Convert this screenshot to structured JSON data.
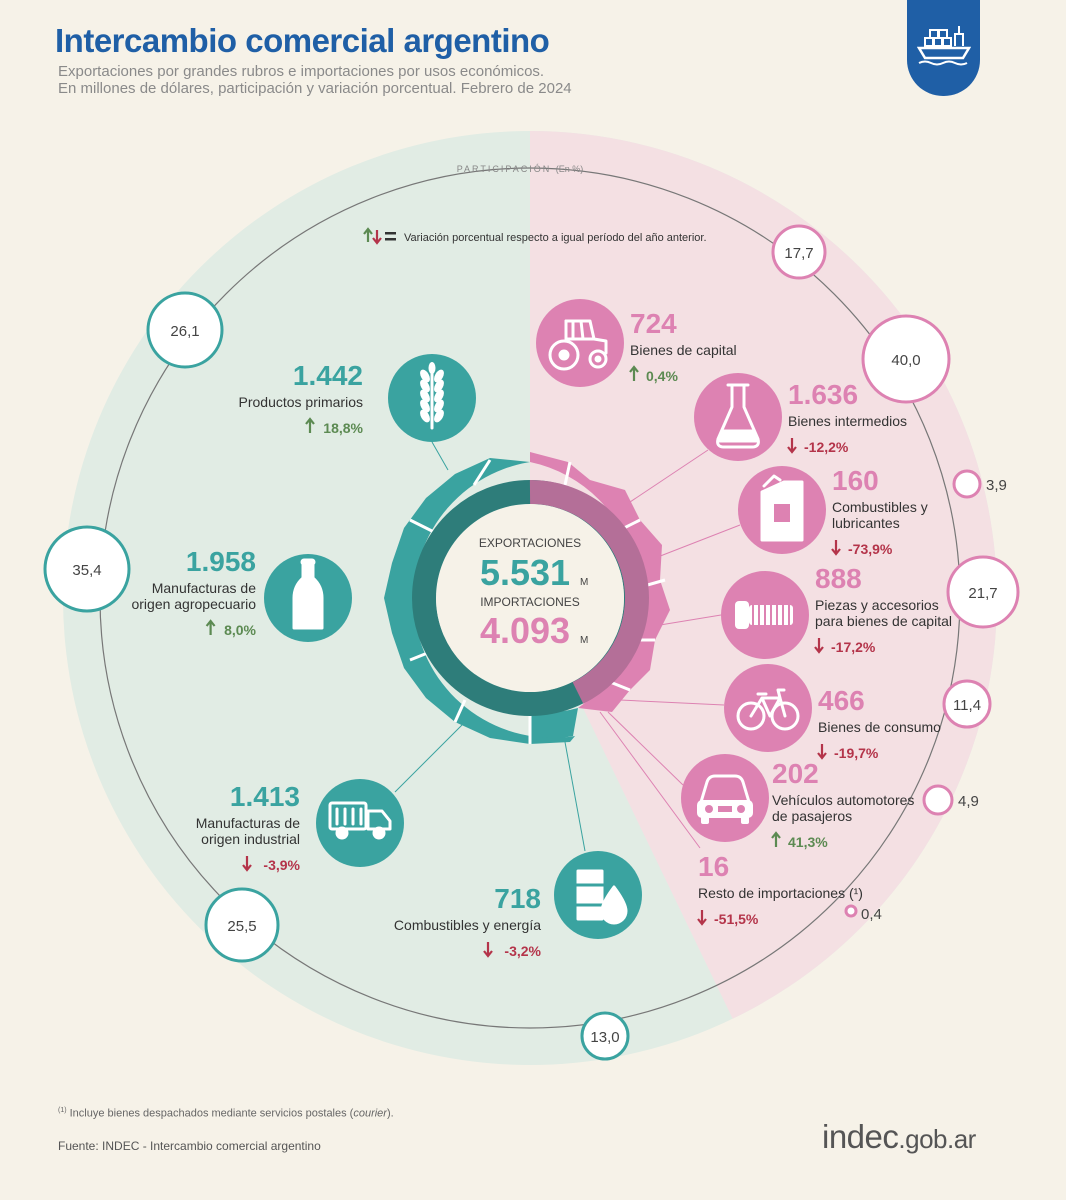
{
  "header": {
    "title": "Intercambio comercial argentino",
    "subtitle_line1": "Exportaciones por grandes rubros e importaciones por usos económicos.",
    "subtitle_line2": "En millones de dólares, participación y variación porcentual. Febrero de 2024",
    "badge_icon": "cargo-ship-icon"
  },
  "colors": {
    "export": "#3aa3a0",
    "export_dark": "#2e7d7a",
    "import": "#dd82b2",
    "import_dark": "#b46f98",
    "export_bg": "#e1ece4",
    "import_bg": "#f4e0e3",
    "up": "#5c8a52",
    "down": "#b4344a",
    "title": "#1f5fa6"
  },
  "labels": {
    "participacion": "PARTICIPACIÓN",
    "participacion_unit": "(En %)",
    "legend_text": "Variación porcentual respecto a igual período del año anterior.",
    "unit_m": "M"
  },
  "footer": {
    "footnote_mark": "(1)",
    "footnote_text": "Incluye bienes despachados mediante servicios postales (",
    "footnote_italic": "courier",
    "footnote_end": ").",
    "source": "Fuente: INDEC  - Intercambio comercial argentino",
    "logo_main": "indec",
    "logo_suffix": ".gob.ar"
  },
  "chart_data": {
    "type": "radial-infographic",
    "center": {
      "exports_label": "EXPORTACIONES",
      "exports_value": "5.531",
      "imports_label": "IMPORTACIONES",
      "imports_value": "4.093",
      "unit": "M"
    },
    "exports": [
      {
        "value": "1.442",
        "label": "Productos primarios",
        "variation": "18,8%",
        "direction": "up",
        "share": "26,1",
        "icon": "wheat-icon"
      },
      {
        "value": "1.958",
        "label": "Manufacturas de origen agropecuario",
        "variation": "8,0%",
        "direction": "up",
        "share": "35,4",
        "icon": "bottle-icon"
      },
      {
        "value": "1.413",
        "label": "Manufacturas de origen industrial",
        "variation": "-3,9%",
        "direction": "down",
        "share": "25,5",
        "icon": "truck-icon"
      },
      {
        "value": "718",
        "label": "Combustibles y energía",
        "variation": "-3,2%",
        "direction": "down",
        "share": "13,0",
        "icon": "barrel-drop-icon"
      }
    ],
    "imports": [
      {
        "value": "724",
        "label": "Bienes de capital",
        "variation": "0,4%",
        "direction": "up",
        "share": "17,7",
        "icon": "tractor-icon"
      },
      {
        "value": "1.636",
        "label": "Bienes intermedios",
        "variation": "-12,2%",
        "direction": "down",
        "share": "40,0",
        "icon": "flask-icon"
      },
      {
        "value": "160",
        "label": "Combustibles y lubricantes",
        "variation": "-73,9%",
        "direction": "down",
        "share": "3,9",
        "icon": "jerrycan-icon"
      },
      {
        "value": "888",
        "label": "Piezas y accesorios para bienes de capital",
        "variation": "-17,2%",
        "direction": "down",
        "share": "21,7",
        "icon": "bolt-icon"
      },
      {
        "value": "466",
        "label": "Bienes de consumo",
        "variation": "-19,7%",
        "direction": "down",
        "share": "11,4",
        "icon": "bicycle-icon"
      },
      {
        "value": "202",
        "label": "Vehículos automotores de pasajeros",
        "variation": "41,3%",
        "direction": "up",
        "share": "4,9",
        "icon": "car-icon"
      },
      {
        "value": "16",
        "label": "Resto de importaciones (¹)",
        "variation": "-51,5%",
        "direction": "down",
        "share": "0,4",
        "icon": "none"
      }
    ]
  }
}
